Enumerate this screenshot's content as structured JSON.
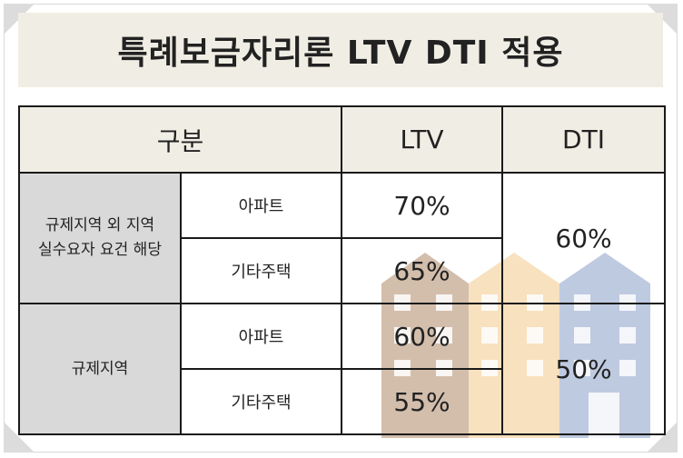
{
  "title": "특례보금자리론 LTV DTI 적용",
  "table": {
    "headers": [
      "구분",
      "LTV",
      "DTI"
    ],
    "groups": [
      {
        "label_lines": [
          "규제지역 외 지역",
          "실수요자 요건 해당"
        ],
        "rows": [
          {
            "type": "아파트",
            "ltv": "70%"
          },
          {
            "type": "기타주택",
            "ltv": "65%"
          }
        ],
        "dti": "60%"
      },
      {
        "label_lines": [
          "규제지역"
        ],
        "rows": [
          {
            "type": "아파트",
            "ltv": "60%"
          },
          {
            "type": "기타주택",
            "ltv": "55%"
          }
        ],
        "dti": "50%"
      }
    ]
  }
}
